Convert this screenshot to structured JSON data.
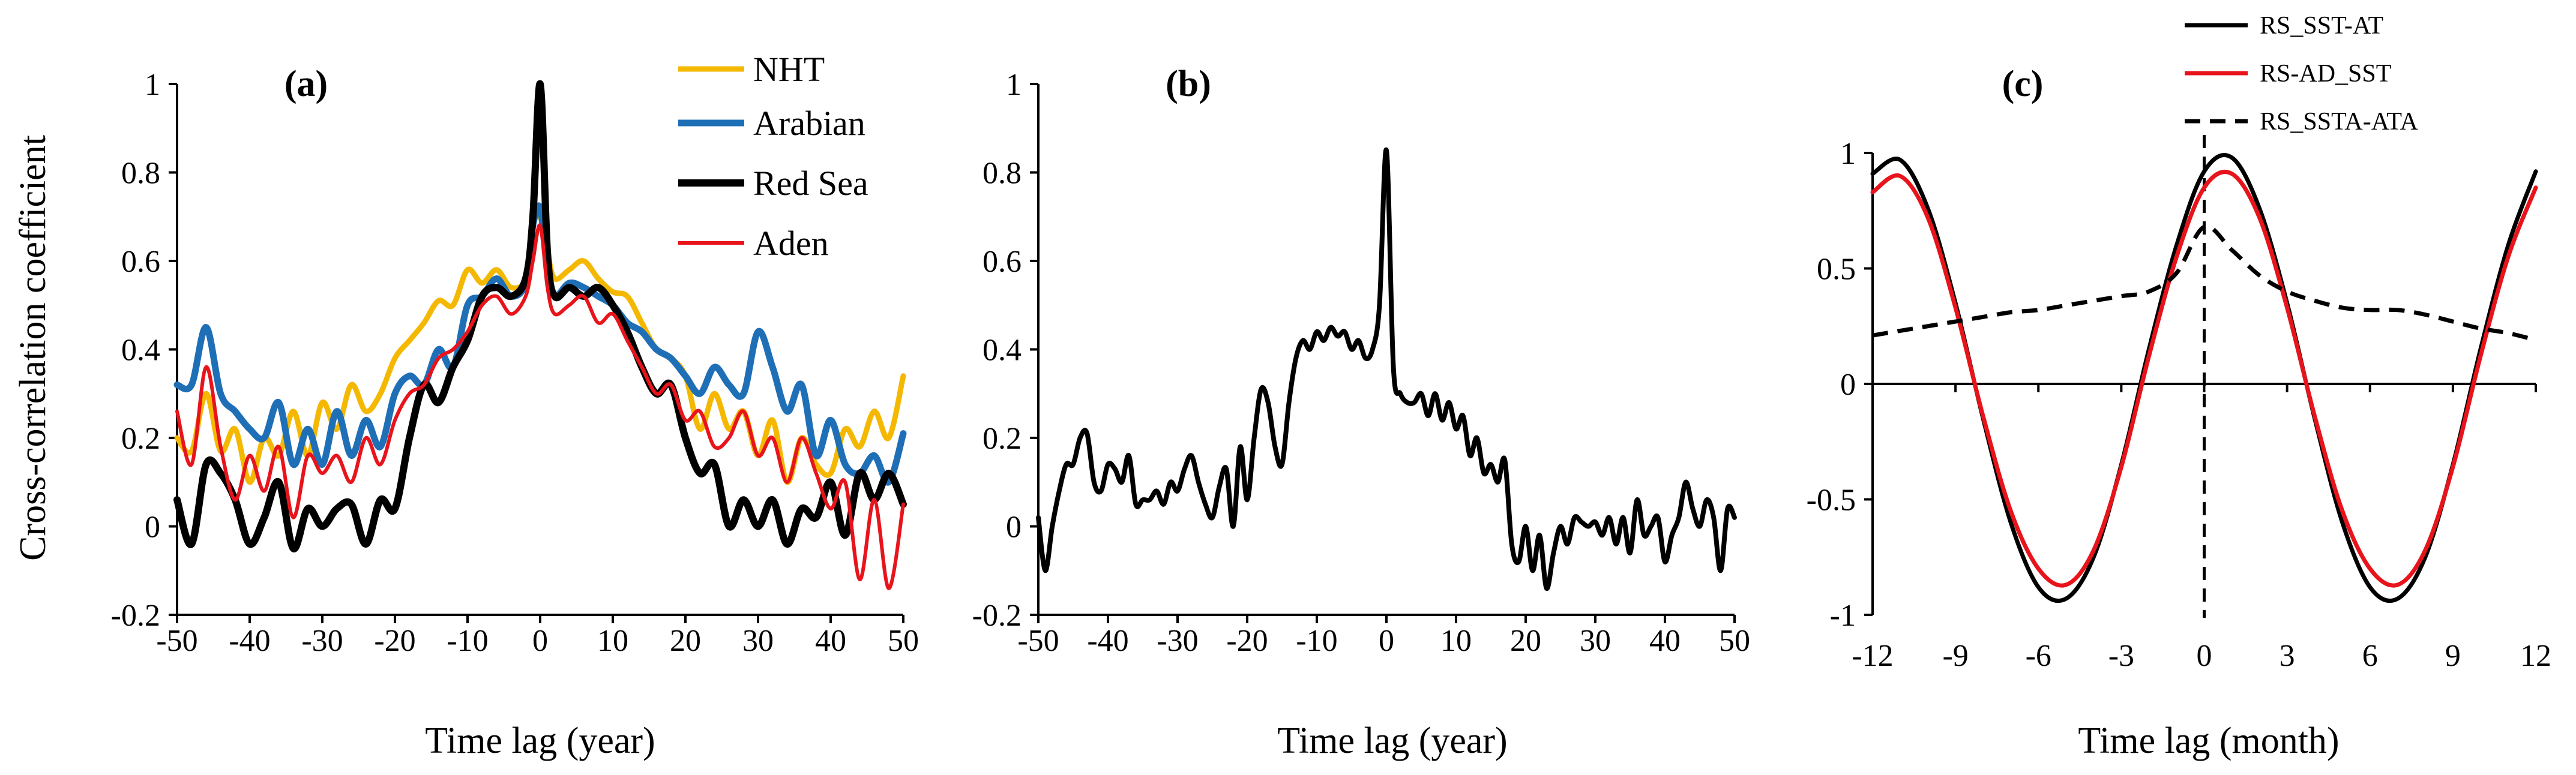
{
  "chart_data": [
    {
      "panel_label": "(a)",
      "type": "line",
      "xlabel": "Time lag (year)",
      "ylabel": "Cross-correlation coefficient",
      "xlim": [
        -50,
        50
      ],
      "ylim": [
        -0.2,
        1
      ],
      "xticks": [
        -50,
        -40,
        -30,
        -20,
        -10,
        0,
        10,
        20,
        30,
        40,
        50
      ],
      "yticks": [
        -0.2,
        0,
        0.2,
        0.4,
        0.6,
        0.8,
        1
      ],
      "ytick_labels": [
        "-0.2",
        "0",
        "0.2",
        "0.4",
        "0.6",
        "0.8",
        "1"
      ],
      "grid": false,
      "legend": "top-right",
      "series": [
        {
          "name": "NHT",
          "color": "#F5B800",
          "x": [
            -50,
            -48,
            -46,
            -44,
            -42,
            -40,
            -38,
            -36,
            -34,
            -32,
            -30,
            -28,
            -26,
            -24,
            -22,
            -20,
            -18,
            -16,
            -14,
            -12,
            -10,
            -8,
            -6,
            -4,
            -2,
            -1,
            0,
            1,
            2,
            4,
            6,
            8,
            10,
            12,
            14,
            16,
            18,
            20,
            22,
            24,
            26,
            28,
            30,
            32,
            34,
            36,
            38,
            40,
            42,
            44,
            46,
            48,
            50
          ],
          "y": [
            0.2,
            0.17,
            0.3,
            0.17,
            0.22,
            0.1,
            0.2,
            0.16,
            0.26,
            0.16,
            0.28,
            0.22,
            0.32,
            0.26,
            0.3,
            0.38,
            0.42,
            0.46,
            0.51,
            0.5,
            0.58,
            0.55,
            0.58,
            0.54,
            0.56,
            0.68,
            0.7,
            0.62,
            0.56,
            0.58,
            0.6,
            0.56,
            0.53,
            0.52,
            0.46,
            0.4,
            0.38,
            0.34,
            0.22,
            0.3,
            0.22,
            0.26,
            0.16,
            0.24,
            0.1,
            0.2,
            0.14,
            0.12,
            0.22,
            0.18,
            0.26,
            0.2,
            0.34
          ]
        },
        {
          "name": "Arabian",
          "color": "#1F6FB7",
          "x": [
            -50,
            -48,
            -46,
            -44,
            -42,
            -40,
            -38,
            -36,
            -34,
            -32,
            -30,
            -28,
            -26,
            -24,
            -22,
            -20,
            -18,
            -16,
            -14,
            -12,
            -10,
            -8,
            -6,
            -4,
            -2,
            -1,
            0,
            1,
            2,
            4,
            6,
            8,
            10,
            12,
            14,
            16,
            18,
            20,
            22,
            24,
            26,
            28,
            30,
            32,
            34,
            36,
            38,
            40,
            42,
            44,
            46,
            48,
            50
          ],
          "y": [
            0.32,
            0.32,
            0.45,
            0.3,
            0.26,
            0.22,
            0.2,
            0.28,
            0.14,
            0.22,
            0.14,
            0.26,
            0.16,
            0.24,
            0.18,
            0.3,
            0.34,
            0.32,
            0.4,
            0.36,
            0.5,
            0.52,
            0.56,
            0.52,
            0.55,
            0.68,
            0.72,
            0.58,
            0.52,
            0.55,
            0.54,
            0.52,
            0.5,
            0.46,
            0.44,
            0.4,
            0.38,
            0.34,
            0.3,
            0.36,
            0.32,
            0.3,
            0.44,
            0.36,
            0.26,
            0.32,
            0.16,
            0.24,
            0.14,
            0.12,
            0.16,
            0.1,
            0.21
          ]
        },
        {
          "name": "Red Sea",
          "color": "#000000",
          "x": [
            -50,
            -48,
            -46,
            -44,
            -42,
            -40,
            -38,
            -36,
            -34,
            -32,
            -30,
            -28,
            -26,
            -24,
            -22,
            -20,
            -18,
            -16,
            -14,
            -12,
            -10,
            -8,
            -6,
            -4,
            -2,
            -1,
            0,
            1,
            2,
            4,
            6,
            8,
            10,
            12,
            14,
            16,
            18,
            20,
            22,
            24,
            26,
            28,
            30,
            32,
            34,
            36,
            38,
            40,
            42,
            44,
            46,
            48,
            50
          ],
          "y": [
            0.06,
            -0.04,
            0.14,
            0.12,
            0.06,
            -0.04,
            0.02,
            0.1,
            -0.05,
            0.04,
            0.0,
            0.04,
            0.05,
            -0.04,
            0.06,
            0.04,
            0.2,
            0.32,
            0.28,
            0.36,
            0.42,
            0.52,
            0.54,
            0.52,
            0.56,
            0.7,
            1.0,
            0.62,
            0.52,
            0.54,
            0.52,
            0.54,
            0.5,
            0.44,
            0.36,
            0.3,
            0.32,
            0.2,
            0.12,
            0.14,
            0.0,
            0.06,
            0.0,
            0.06,
            -0.04,
            0.04,
            0.02,
            0.1,
            -0.02,
            0.12,
            0.06,
            0.12,
            0.05
          ]
        },
        {
          "name": "Aden",
          "color": "#E8141C",
          "x": [
            -50,
            -48,
            -46,
            -44,
            -42,
            -40,
            -38,
            -36,
            -34,
            -32,
            -30,
            -28,
            -26,
            -24,
            -22,
            -20,
            -18,
            -16,
            -14,
            -12,
            -10,
            -8,
            -6,
            -4,
            -2,
            -1,
            0,
            1,
            2,
            4,
            6,
            8,
            10,
            12,
            14,
            16,
            18,
            20,
            22,
            24,
            26,
            28,
            30,
            32,
            34,
            36,
            38,
            40,
            42,
            44,
            46,
            48,
            50
          ],
          "y": [
            0.26,
            0.14,
            0.36,
            0.18,
            0.06,
            0.16,
            0.08,
            0.18,
            0.02,
            0.16,
            0.12,
            0.16,
            0.1,
            0.2,
            0.14,
            0.24,
            0.3,
            0.32,
            0.38,
            0.4,
            0.44,
            0.5,
            0.52,
            0.48,
            0.52,
            0.6,
            0.68,
            0.54,
            0.48,
            0.5,
            0.52,
            0.46,
            0.48,
            0.42,
            0.36,
            0.3,
            0.32,
            0.24,
            0.26,
            0.18,
            0.2,
            0.26,
            0.16,
            0.2,
            0.1,
            0.2,
            0.12,
            0.04,
            0.1,
            -0.12,
            0.06,
            -0.14,
            0.05
          ]
        }
      ]
    },
    {
      "panel_label": "(b)",
      "type": "line",
      "xlabel": "Time lag (year)",
      "ylabel": "",
      "xlim": [
        -50,
        50
      ],
      "ylim": [
        -0.2,
        1
      ],
      "xticks": [
        -50,
        -40,
        -30,
        -20,
        -10,
        0,
        10,
        20,
        30,
        40,
        50
      ],
      "yticks": [
        -0.2,
        0,
        0.2,
        0.4,
        0.6,
        0.8,
        1
      ],
      "ytick_labels": [
        "-0.2",
        "0",
        "0.2",
        "0.4",
        "0.6",
        "0.8",
        "1"
      ],
      "grid": false,
      "series": [
        {
          "name": "",
          "color": "#000000",
          "x": [
            -50,
            -49,
            -48,
            -47,
            -46,
            -45,
            -44,
            -43,
            -42,
            -41,
            -40,
            -39,
            -38,
            -37,
            -36,
            -35,
            -34,
            -33,
            -32,
            -31,
            -30,
            -29,
            -28,
            -27,
            -26,
            -25,
            -24,
            -23,
            -22,
            -21,
            -20,
            -19,
            -18,
            -17,
            -16,
            -15,
            -14,
            -13,
            -12,
            -11,
            -10,
            -9,
            -8,
            -7,
            -6,
            -5,
            -4,
            -3,
            -2,
            -1,
            0,
            1,
            2,
            3,
            4,
            5,
            6,
            7,
            8,
            9,
            10,
            11,
            12,
            13,
            14,
            15,
            16,
            17,
            18,
            19,
            20,
            21,
            22,
            23,
            24,
            25,
            26,
            27,
            28,
            29,
            30,
            31,
            32,
            33,
            34,
            35,
            36,
            37,
            38,
            39,
            40,
            41,
            42,
            43,
            44,
            45,
            46,
            47,
            48,
            49,
            50
          ],
          "y": [
            0.02,
            -0.1,
            0.0,
            0.08,
            0.14,
            0.14,
            0.2,
            0.21,
            0.1,
            0.08,
            0.14,
            0.13,
            0.1,
            0.16,
            0.05,
            0.06,
            0.06,
            0.08,
            0.05,
            0.1,
            0.08,
            0.13,
            0.16,
            0.1,
            0.05,
            0.02,
            0.09,
            0.13,
            0.0,
            0.18,
            0.06,
            0.2,
            0.31,
            0.28,
            0.18,
            0.14,
            0.28,
            0.38,
            0.42,
            0.4,
            0.44,
            0.42,
            0.45,
            0.43,
            0.44,
            0.4,
            0.42,
            0.38,
            0.4,
            0.5,
            0.85,
            0.36,
            0.3,
            0.28,
            0.28,
            0.3,
            0.25,
            0.3,
            0.24,
            0.28,
            0.22,
            0.25,
            0.16,
            0.2,
            0.12,
            0.14,
            0.1,
            0.15,
            -0.04,
            -0.08,
            0.0,
            -0.1,
            -0.02,
            -0.14,
            -0.06,
            0.0,
            -0.04,
            0.02,
            0.01,
            0.0,
            0.01,
            -0.02,
            0.02,
            -0.04,
            0.02,
            -0.06,
            0.06,
            -0.02,
            0.0,
            0.02,
            -0.08,
            -0.02,
            0.02,
            0.1,
            0.04,
            0.0,
            0.06,
            0.02,
            -0.1,
            0.04,
            0.02
          ]
        }
      ]
    },
    {
      "panel_label": "(c)",
      "type": "line",
      "xlabel": "Time lag (month)",
      "ylabel": "",
      "xlim": [
        -12,
        12
      ],
      "ylim": [
        -1,
        1
      ],
      "xticks": [
        -12,
        -9,
        -6,
        -3,
        0,
        3,
        6,
        9,
        12
      ],
      "yticks": [
        -1,
        -0.5,
        0,
        0.5,
        1
      ],
      "ytick_labels": [
        "-1",
        "-0.5",
        "0",
        "0.5",
        "1"
      ],
      "grid": false,
      "legend": "top-right",
      "series": [
        {
          "name": "RS_SST-AT",
          "color": "#000000",
          "style": "solid",
          "x": [
            -12,
            -11,
            -10,
            -9,
            -8,
            -7,
            -6,
            -5,
            -4,
            -3,
            -2,
            -1,
            0,
            1,
            2,
            3,
            4,
            5,
            6,
            7,
            8,
            9,
            10,
            11,
            12
          ],
          "y": [
            0.91,
            0.97,
            0.76,
            0.35,
            -0.15,
            -0.6,
            -0.88,
            -0.93,
            -0.75,
            -0.35,
            0.15,
            0.6,
            0.92,
            0.98,
            0.76,
            0.35,
            -0.15,
            -0.6,
            -0.88,
            -0.93,
            -0.75,
            -0.35,
            0.15,
            0.6,
            0.92
          ]
        },
        {
          "name": "RS-AD_SST",
          "color": "#E8141C",
          "style": "solid",
          "x": [
            -12,
            -11,
            -10,
            -9,
            -8,
            -7,
            -6,
            -5,
            -4,
            -3,
            -2,
            -1,
            0,
            1,
            2,
            3,
            4,
            5,
            6,
            7,
            8,
            9,
            10,
            11,
            12
          ],
          "y": [
            0.83,
            0.9,
            0.72,
            0.33,
            -0.14,
            -0.55,
            -0.8,
            -0.87,
            -0.72,
            -0.36,
            0.12,
            0.55,
            0.85,
            0.91,
            0.72,
            0.33,
            -0.14,
            -0.55,
            -0.8,
            -0.87,
            -0.72,
            -0.36,
            0.12,
            0.55,
            0.85
          ]
        },
        {
          "name": "RS_SSTA-ATA",
          "color": "#000000",
          "style": "dashed",
          "x": [
            -12,
            -11,
            -10,
            -9,
            -8,
            -7,
            -6,
            -5,
            -4,
            -3,
            -2,
            -1,
            0,
            1,
            2,
            3,
            4,
            5,
            6,
            7,
            8,
            9,
            10,
            11,
            12
          ],
          "y": [
            0.21,
            0.23,
            0.25,
            0.27,
            0.29,
            0.31,
            0.32,
            0.34,
            0.36,
            0.38,
            0.4,
            0.48,
            0.68,
            0.58,
            0.47,
            0.4,
            0.36,
            0.33,
            0.32,
            0.32,
            0.3,
            0.27,
            0.24,
            0.22,
            0.19
          ]
        }
      ]
    }
  ]
}
